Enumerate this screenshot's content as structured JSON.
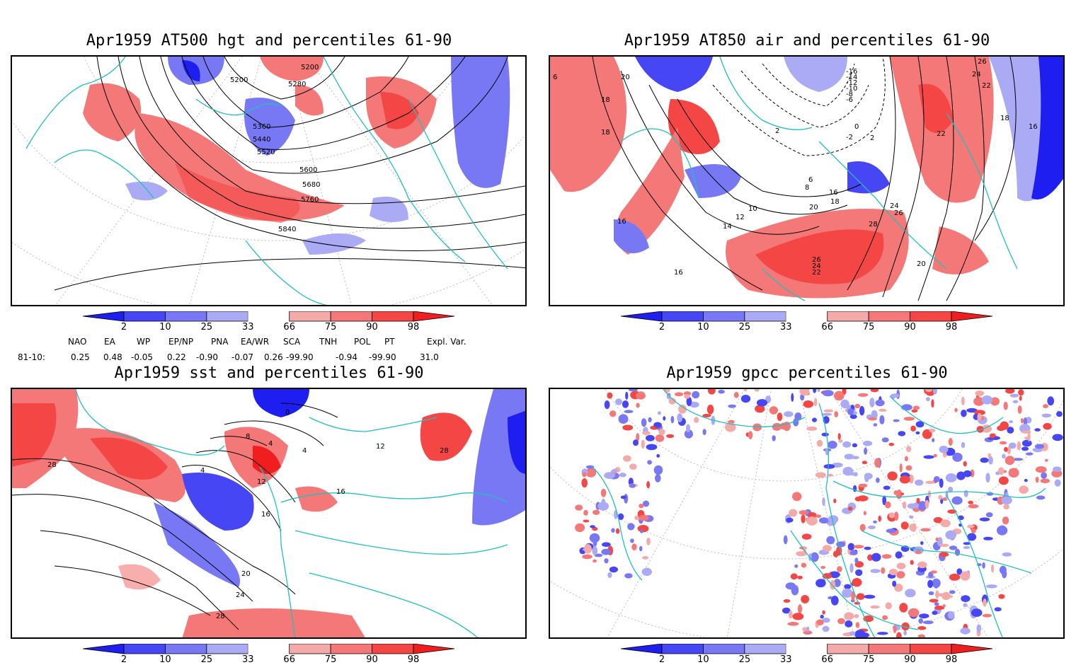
{
  "panels": [
    {
      "id": "p1",
      "title": "Apr1959 AT500 hgt and percentiles 61-90",
      "contour_labels": [
        "5200",
        "5200",
        "5280",
        "5360",
        "5440",
        "5520",
        "5600",
        "5680",
        "5760",
        "5840"
      ]
    },
    {
      "id": "p2",
      "title": "Apr1959 AT850 air and percentiles 61-90",
      "contour_labels": [
        "6",
        "20",
        "18",
        "18",
        "16",
        "16",
        "10",
        "12",
        "14",
        "8",
        "6",
        "2",
        "-2",
        "-6",
        "-8",
        "-10",
        "-12",
        "-14",
        "-16",
        "16",
        "18",
        "20",
        "24",
        "26",
        "28",
        "26",
        "24",
        "22",
        "20",
        "22",
        "18",
        "16",
        "24",
        "22",
        "26",
        "0",
        "2"
      ]
    },
    {
      "id": "p3",
      "title": "Apr1959 sst and percentiles 61-90",
      "contour_labels": [
        "28",
        "0",
        "8",
        "4",
        "4",
        "4",
        "12",
        "16",
        "16",
        "12",
        "20",
        "24",
        "28",
        "28"
      ]
    },
    {
      "id": "p4",
      "title": "Apr1959 gpcc percentiles 61-90",
      "contour_labels": []
    }
  ],
  "colorbar": {
    "labels": [
      "2",
      "10",
      "25",
      "33",
      "66",
      "75",
      "90",
      "98"
    ],
    "colors": [
      "#1e1ef0",
      "#4646f5",
      "#7878f5",
      "#aaaaf5",
      "#ffffff",
      "#f5aaaa",
      "#f57878",
      "#f54646",
      "#f01e1e"
    ]
  },
  "indices": {
    "headers": [
      "NAO",
      "EA",
      "WP",
      "EP/NP",
      "PNA",
      "EA/WR",
      "SCA",
      "TNH",
      "POL",
      "PT",
      "Expl. Var."
    ],
    "row_label": "81-10:",
    "values": [
      "0.25",
      "0.48",
      "-0.05",
      "0.22",
      "-0.90",
      "-0.07",
      "0.26",
      "-99.90",
      "-0.94",
      "-99.90",
      "31.0"
    ]
  }
}
